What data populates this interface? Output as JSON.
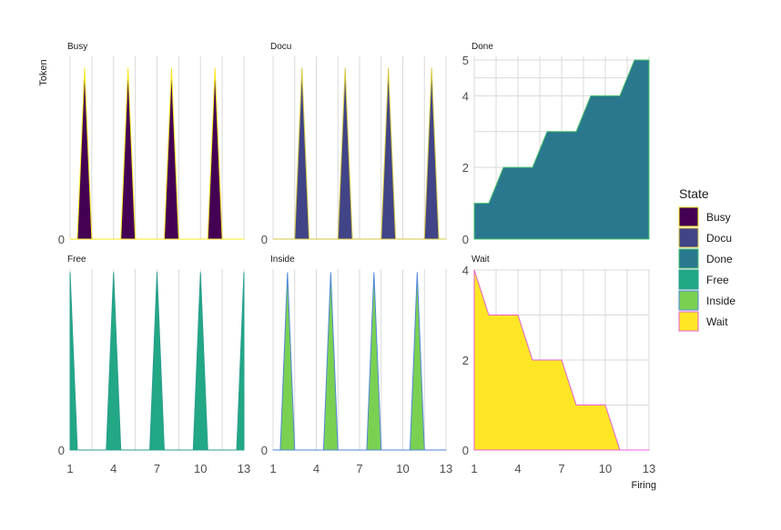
{
  "chart_data": {
    "type": "area",
    "xlabel": "Firing",
    "ylabel": "Token",
    "x_ticks": [
      1,
      4,
      7,
      10,
      13
    ],
    "xlim": [
      1,
      13
    ],
    "grid": true,
    "legend": {
      "title": "State",
      "position": "right",
      "entries": [
        {
          "name": "Busy",
          "fill": "#440154",
          "stroke": "#f9e721"
        },
        {
          "name": "Docu",
          "fill": "#414487",
          "stroke": "#d6c843"
        },
        {
          "name": "Done",
          "fill": "#2a788e",
          "stroke": "#4ac16d"
        },
        {
          "name": "Free",
          "fill": "#22a884",
          "stroke": "#2a9d8f"
        },
        {
          "name": "Inside",
          "fill": "#7ad151",
          "stroke": "#4f86d9"
        },
        {
          "name": "Wait",
          "fill": "#fde725",
          "stroke": "#e75fd3"
        }
      ]
    },
    "panels": [
      {
        "name": "Busy",
        "row": 0,
        "col": 0,
        "ylim": [
          0,
          1.07
        ],
        "y_ticks": [
          0
        ],
        "x": [
          1,
          1.5,
          2,
          2.5,
          3,
          3.5,
          4,
          4.5,
          5,
          5.5,
          6,
          6.5,
          7,
          7.5,
          8,
          8.5,
          9,
          9.5,
          10,
          10.5,
          11,
          11.5,
          12,
          12.5,
          13
        ],
        "y": [
          0,
          0,
          1,
          0,
          0,
          0,
          0,
          0,
          1,
          0,
          0,
          0,
          0,
          0,
          1,
          0,
          0,
          0,
          0,
          0,
          1,
          0,
          0,
          0,
          0
        ]
      },
      {
        "name": "Docu",
        "row": 0,
        "col": 1,
        "ylim": [
          0,
          1.07
        ],
        "y_ticks": [
          0
        ],
        "x": [
          1,
          1.5,
          2,
          2.5,
          3,
          3.5,
          4,
          4.5,
          5,
          5.5,
          6,
          6.5,
          7,
          7.5,
          8,
          8.5,
          9,
          9.5,
          10,
          10.5,
          11,
          11.5,
          12,
          12.5,
          13
        ],
        "y": [
          0,
          0,
          0,
          0,
          1,
          0,
          0,
          0,
          0,
          0,
          1,
          0,
          0,
          0,
          0,
          0,
          1,
          0,
          0,
          0,
          0,
          0,
          1,
          0,
          0
        ]
      },
      {
        "name": "Done",
        "row": 0,
        "col": 2,
        "ylim": [
          0,
          5.1
        ],
        "y_ticks": [
          0,
          2,
          4,
          5
        ],
        "x": [
          1,
          2,
          3,
          4,
          5,
          6,
          7,
          8,
          9,
          10,
          11,
          12,
          13
        ],
        "y": [
          1,
          1,
          2,
          2,
          2,
          3,
          3,
          3,
          4,
          4,
          4,
          5,
          5
        ]
      },
      {
        "name": "Free",
        "row": 1,
        "col": 0,
        "ylim": [
          0,
          1.02
        ],
        "y_ticks": [
          0
        ],
        "x": [
          1,
          1.5,
          2,
          2.5,
          3,
          3.5,
          4,
          4.5,
          5,
          5.5,
          6,
          6.5,
          7,
          7.5,
          8,
          8.5,
          9,
          9.5,
          10,
          10.5,
          11,
          11.5,
          12,
          12.5,
          13
        ],
        "y": [
          1,
          0,
          0,
          0,
          0,
          0,
          1,
          0,
          0,
          0,
          0,
          0,
          1,
          0,
          0,
          0,
          0,
          0,
          1,
          0,
          0,
          0,
          0,
          0,
          1
        ]
      },
      {
        "name": "Inside",
        "row": 1,
        "col": 1,
        "ylim": [
          0,
          1.02
        ],
        "y_ticks": [
          0
        ],
        "x": [
          1,
          1.5,
          2,
          2.5,
          3,
          3.5,
          4,
          4.5,
          5,
          5.5,
          6,
          6.5,
          7,
          7.5,
          8,
          8.5,
          9,
          9.5,
          10,
          10.5,
          11,
          11.5,
          12,
          12.5,
          13
        ],
        "y": [
          0,
          0,
          1,
          0,
          0,
          0,
          0,
          0,
          1,
          0,
          0,
          0,
          0,
          0,
          1,
          0,
          0,
          0,
          0,
          0,
          1,
          0,
          0,
          0,
          0
        ]
      },
      {
        "name": "Wait",
        "row": 1,
        "col": 2,
        "ylim": [
          0,
          4.02
        ],
        "y_ticks": [
          0,
          2,
          4
        ],
        "x": [
          1,
          2,
          3,
          4,
          5,
          6,
          7,
          8,
          9,
          10,
          11,
          12,
          13
        ],
        "y": [
          4,
          3,
          3,
          3,
          2,
          2,
          2,
          1,
          1,
          1,
          0,
          0,
          0
        ]
      }
    ]
  }
}
